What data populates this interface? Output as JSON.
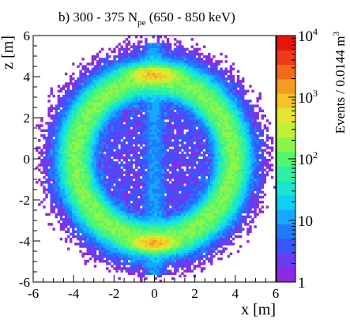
{
  "title": {
    "prefix": "b) 300 - 375 N",
    "subscript": "pe",
    "suffix": " (650 - 850 keV)"
  },
  "colorbar": {
    "label": "Events / 0.0144 m",
    "label_sup": "3",
    "palette": [
      "#8a2be2",
      "#6a3cf0",
      "#3a55ff",
      "#1f7cff",
      "#14a8ff",
      "#12cdf5",
      "#19e6d2",
      "#2ff0a0",
      "#55f570",
      "#8cf54a",
      "#c0f03a",
      "#e6e430",
      "#f5c428",
      "#f59a22",
      "#f26a1c",
      "#ee3a16",
      "#e8140f"
    ],
    "tick_labels": [
      {
        "base": "1",
        "exp": ""
      },
      {
        "base": "10",
        "exp": ""
      },
      {
        "base": "10",
        "exp": "2"
      },
      {
        "base": "10",
        "exp": "3"
      },
      {
        "base": "10",
        "exp": "4"
      }
    ]
  },
  "chart_data": {
    "type": "heatmap",
    "title": "b) 300 - 375 N_pe (650 - 850 keV)",
    "xlabel": "x [m]",
    "ylabel": "z [m]",
    "xlim": [
      -6,
      6
    ],
    "ylim": [
      -6,
      6
    ],
    "x_ticks": [
      -6,
      -4,
      -2,
      0,
      2,
      4,
      6
    ],
    "y_ticks": [
      -6,
      -4,
      -2,
      0,
      2,
      4,
      6
    ],
    "x_tick_labels": [
      "-6",
      "-4",
      "-2",
      "0",
      "2",
      "4",
      "6"
    ],
    "y_tick_labels": [
      "-6",
      "-4",
      "-2",
      "0",
      "2",
      "4",
      "6"
    ],
    "z_label": "Events / 0.0144 m^3",
    "z_scale": "log",
    "z_range": [
      1,
      10000
    ],
    "bin_size_m": 0.12,
    "features": {
      "vessel_ring_radius_m": 3.9,
      "vessel_ring_peak_events": 150,
      "interior_fill_events": 3,
      "hotspot_top": {
        "x": 0,
        "z": 4.1,
        "events": 1000
      },
      "hotspot_bottom": {
        "x": 0,
        "z": -4.1,
        "events": 1000
      },
      "tail_top_extent_z": 5.6,
      "tail_bottom_extent_z": -5.6
    }
  }
}
